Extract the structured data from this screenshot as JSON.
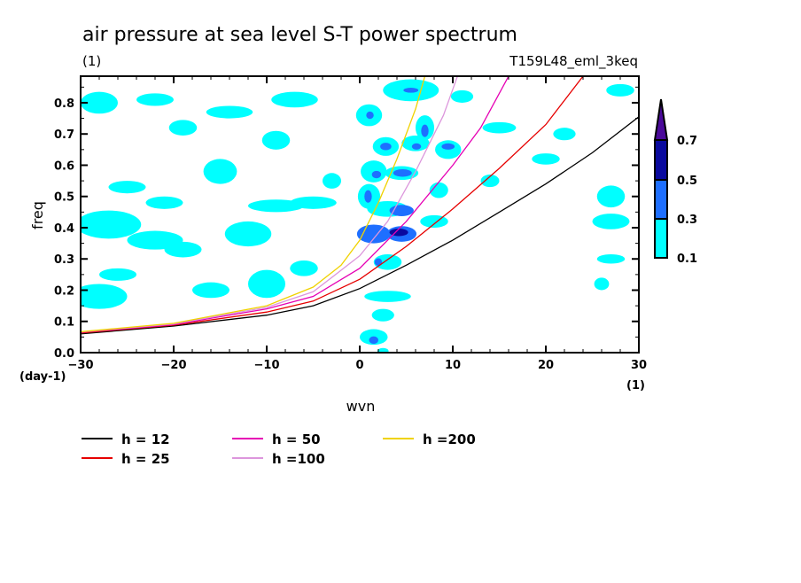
{
  "chart_data": {
    "type": "heatmap",
    "title": "air pressure at sea level S-T power spectrum",
    "subtitle_left": "(1)",
    "subtitle_right": "T159L48_eml_3keq",
    "xlabel": "wvn",
    "ylabel": "freq",
    "x_unit": "(1)",
    "y_unit": "(day-1)",
    "xlim": [
      -30,
      30
    ],
    "ylim": [
      0.0,
      0.885
    ],
    "x_ticks": [
      -30,
      -20,
      -10,
      0,
      10,
      20,
      30
    ],
    "x_tick_labels": [
      "−30",
      "−20",
      "−10",
      "0",
      "10",
      "20",
      "30"
    ],
    "y_ticks": [
      0.0,
      0.1,
      0.2,
      0.3,
      0.4,
      0.5,
      0.6,
      0.7,
      0.8
    ],
    "y_tick_labels": [
      "0.0",
      "0.1",
      "0.2",
      "0.3",
      "0.4",
      "0.5",
      "0.6",
      "0.7",
      "0.8"
    ],
    "colorbar": {
      "levels": [
        0.1,
        0.3,
        0.5,
        0.7
      ],
      "level_labels": [
        "0.1",
        "0.3",
        "0.5",
        "0.7"
      ],
      "colors": [
        "#00ffff",
        "#1e6fff",
        "#0a0a9e",
        "#4b0a9a"
      ],
      "extend": "max"
    },
    "contour_blobs": [
      {
        "x": 1.5,
        "y": 0.38,
        "rx": 1.8,
        "ry": 0.03,
        "level": 2
      },
      {
        "x": 4.5,
        "y": 0.38,
        "rx": 1.6,
        "ry": 0.025,
        "level": 2
      },
      {
        "x": 4.2,
        "y": 0.385,
        "rx": 1.0,
        "ry": 0.012,
        "level": 3
      },
      {
        "x": 3.0,
        "y": 0.46,
        "rx": 2.2,
        "ry": 0.025,
        "level": 1
      },
      {
        "x": 4.5,
        "y": 0.455,
        "rx": 1.3,
        "ry": 0.018,
        "level": 2
      },
      {
        "x": 1.0,
        "y": 0.5,
        "rx": 1.2,
        "ry": 0.04,
        "level": 1
      },
      {
        "x": 0.9,
        "y": 0.5,
        "rx": 0.4,
        "ry": 0.02,
        "level": 2
      },
      {
        "x": 4.5,
        "y": 0.575,
        "rx": 1.8,
        "ry": 0.022,
        "level": 1
      },
      {
        "x": 4.6,
        "y": 0.575,
        "rx": 1.0,
        "ry": 0.012,
        "level": 2
      },
      {
        "x": 1.5,
        "y": 0.58,
        "rx": 1.4,
        "ry": 0.035,
        "level": 1
      },
      {
        "x": 1.8,
        "y": 0.57,
        "rx": 0.5,
        "ry": 0.012,
        "level": 2
      },
      {
        "x": 8.5,
        "y": 0.52,
        "rx": 1.0,
        "ry": 0.025,
        "level": 1
      },
      {
        "x": 6.0,
        "y": 0.67,
        "rx": 1.5,
        "ry": 0.025,
        "level": 1
      },
      {
        "x": 6.1,
        "y": 0.66,
        "rx": 0.5,
        "ry": 0.01,
        "level": 2
      },
      {
        "x": 2.8,
        "y": 0.66,
        "rx": 1.4,
        "ry": 0.03,
        "level": 1
      },
      {
        "x": 2.8,
        "y": 0.66,
        "rx": 0.6,
        "ry": 0.012,
        "level": 2
      },
      {
        "x": 9.5,
        "y": 0.65,
        "rx": 1.4,
        "ry": 0.03,
        "level": 1
      },
      {
        "x": 9.5,
        "y": 0.66,
        "rx": 0.7,
        "ry": 0.01,
        "level": 2
      },
      {
        "x": 1.0,
        "y": 0.76,
        "rx": 1.4,
        "ry": 0.035,
        "level": 1
      },
      {
        "x": 1.1,
        "y": 0.76,
        "rx": 0.4,
        "ry": 0.012,
        "level": 2
      },
      {
        "x": 7.0,
        "y": 0.72,
        "rx": 1.0,
        "ry": 0.04,
        "level": 1
      },
      {
        "x": 7.0,
        "y": 0.71,
        "rx": 0.4,
        "ry": 0.02,
        "level": 2
      },
      {
        "x": 5.5,
        "y": 0.84,
        "rx": 3.0,
        "ry": 0.035,
        "level": 1
      },
      {
        "x": 5.5,
        "y": 0.84,
        "rx": 0.8,
        "ry": 0.008,
        "level": 2
      },
      {
        "x": 1.5,
        "y": 0.05,
        "rx": 1.5,
        "ry": 0.025,
        "level": 1
      },
      {
        "x": 1.5,
        "y": 0.04,
        "rx": 0.5,
        "ry": 0.012,
        "level": 2
      },
      {
        "x": 2.5,
        "y": 0.005,
        "rx": 0.6,
        "ry": 0.01,
        "level": 1
      },
      {
        "x": 3.0,
        "y": 0.29,
        "rx": 1.5,
        "ry": 0.025,
        "level": 1
      },
      {
        "x": 2.0,
        "y": 0.29,
        "rx": 0.4,
        "ry": 0.012,
        "level": 2
      },
      {
        "x": 3.0,
        "y": 0.18,
        "rx": 2.5,
        "ry": 0.018,
        "level": 1
      },
      {
        "x": 2.5,
        "y": 0.12,
        "rx": 1.2,
        "ry": 0.02,
        "level": 1
      },
      {
        "x": -27,
        "y": 0.41,
        "rx": 3.5,
        "ry": 0.045,
        "level": 1
      },
      {
        "x": -22,
        "y": 0.36,
        "rx": 3.0,
        "ry": 0.03,
        "level": 1
      },
      {
        "x": -28,
        "y": 0.18,
        "rx": 3.0,
        "ry": 0.04,
        "level": 1
      },
      {
        "x": -26,
        "y": 0.25,
        "rx": 2.0,
        "ry": 0.02,
        "level": 1
      },
      {
        "x": -21,
        "y": 0.48,
        "rx": 2.0,
        "ry": 0.02,
        "level": 1
      },
      {
        "x": -19,
        "y": 0.33,
        "rx": 2.0,
        "ry": 0.025,
        "level": 1
      },
      {
        "x": -12,
        "y": 0.38,
        "rx": 2.5,
        "ry": 0.04,
        "level": 1
      },
      {
        "x": -16,
        "y": 0.2,
        "rx": 2.0,
        "ry": 0.025,
        "level": 1
      },
      {
        "x": -10,
        "y": 0.22,
        "rx": 2.0,
        "ry": 0.045,
        "level": 1
      },
      {
        "x": -6,
        "y": 0.27,
        "rx": 1.5,
        "ry": 0.025,
        "level": 1
      },
      {
        "x": -9,
        "y": 0.47,
        "rx": 3.0,
        "ry": 0.02,
        "level": 1
      },
      {
        "x": -5,
        "y": 0.48,
        "rx": 2.5,
        "ry": 0.02,
        "level": 1
      },
      {
        "x": -15,
        "y": 0.58,
        "rx": 1.8,
        "ry": 0.04,
        "level": 1
      },
      {
        "x": -9,
        "y": 0.68,
        "rx": 1.5,
        "ry": 0.03,
        "level": 1
      },
      {
        "x": -19,
        "y": 0.72,
        "rx": 1.5,
        "ry": 0.025,
        "level": 1
      },
      {
        "x": -22,
        "y": 0.81,
        "rx": 2.0,
        "ry": 0.02,
        "level": 1
      },
      {
        "x": -28,
        "y": 0.8,
        "rx": 2.0,
        "ry": 0.035,
        "level": 1
      },
      {
        "x": -14,
        "y": 0.77,
        "rx": 2.5,
        "ry": 0.02,
        "level": 1
      },
      {
        "x": -7,
        "y": 0.81,
        "rx": 2.5,
        "ry": 0.025,
        "level": 1
      },
      {
        "x": -25,
        "y": 0.53,
        "rx": 2.0,
        "ry": 0.02,
        "level": 1
      },
      {
        "x": -3,
        "y": 0.55,
        "rx": 1.0,
        "ry": 0.025,
        "level": 1
      },
      {
        "x": 8.0,
        "y": 0.42,
        "rx": 1.5,
        "ry": 0.02,
        "level": 1
      },
      {
        "x": 14,
        "y": 0.55,
        "rx": 1.0,
        "ry": 0.02,
        "level": 1
      },
      {
        "x": 15,
        "y": 0.72,
        "rx": 1.8,
        "ry": 0.018,
        "level": 1
      },
      {
        "x": 20,
        "y": 0.62,
        "rx": 1.5,
        "ry": 0.018,
        "level": 1
      },
      {
        "x": 27,
        "y": 0.5,
        "rx": 1.5,
        "ry": 0.035,
        "level": 1
      },
      {
        "x": 27,
        "y": 0.42,
        "rx": 2.0,
        "ry": 0.025,
        "level": 1
      },
      {
        "x": 27,
        "y": 0.3,
        "rx": 1.5,
        "ry": 0.015,
        "level": 1
      },
      {
        "x": 28,
        "y": 0.84,
        "rx": 1.5,
        "ry": 0.02,
        "level": 1
      },
      {
        "x": 22,
        "y": 0.7,
        "rx": 1.2,
        "ry": 0.02,
        "level": 1
      },
      {
        "x": 26,
        "y": 0.22,
        "rx": 0.8,
        "ry": 0.02,
        "level": 1
      },
      {
        "x": 11,
        "y": 0.82,
        "rx": 1.2,
        "ry": 0.02,
        "level": 1
      }
    ],
    "series": [
      {
        "name": "h = 12",
        "color": "#000000",
        "x": [
          -30,
          -20,
          -10,
          -5,
          0,
          5,
          10,
          15,
          20,
          25,
          30
        ],
        "y": [
          0.06,
          0.085,
          0.12,
          0.15,
          0.205,
          0.28,
          0.36,
          0.45,
          0.54,
          0.64,
          0.755
        ]
      },
      {
        "name": "h = 25",
        "color": "#e60000",
        "x": [
          -30,
          -20,
          -10,
          -5,
          0,
          5,
          10,
          15,
          20,
          24
        ],
        "y": [
          0.063,
          0.088,
          0.13,
          0.165,
          0.235,
          0.34,
          0.46,
          0.59,
          0.73,
          0.885
        ]
      },
      {
        "name": "h = 50",
        "color": "#e600b4",
        "x": [
          -30,
          -20,
          -10,
          -5,
          0,
          5,
          10,
          13,
          16
        ],
        "y": [
          0.065,
          0.09,
          0.14,
          0.18,
          0.27,
          0.42,
          0.6,
          0.72,
          0.885
        ]
      },
      {
        "name": "h =100",
        "color": "#dc96dc",
        "x": [
          -30,
          -20,
          -10,
          -5,
          0,
          3,
          6,
          9,
          10.5
        ],
        "y": [
          0.066,
          0.092,
          0.145,
          0.195,
          0.31,
          0.42,
          0.58,
          0.76,
          0.885
        ]
      },
      {
        "name": "h =200",
        "color": "#f0d200",
        "x": [
          -30,
          -20,
          -10,
          -5,
          -2,
          0,
          2,
          4,
          6,
          7
        ],
        "y": [
          0.067,
          0.094,
          0.15,
          0.21,
          0.28,
          0.36,
          0.48,
          0.62,
          0.78,
          0.885
        ]
      }
    ],
    "legend_position": "bottom"
  }
}
